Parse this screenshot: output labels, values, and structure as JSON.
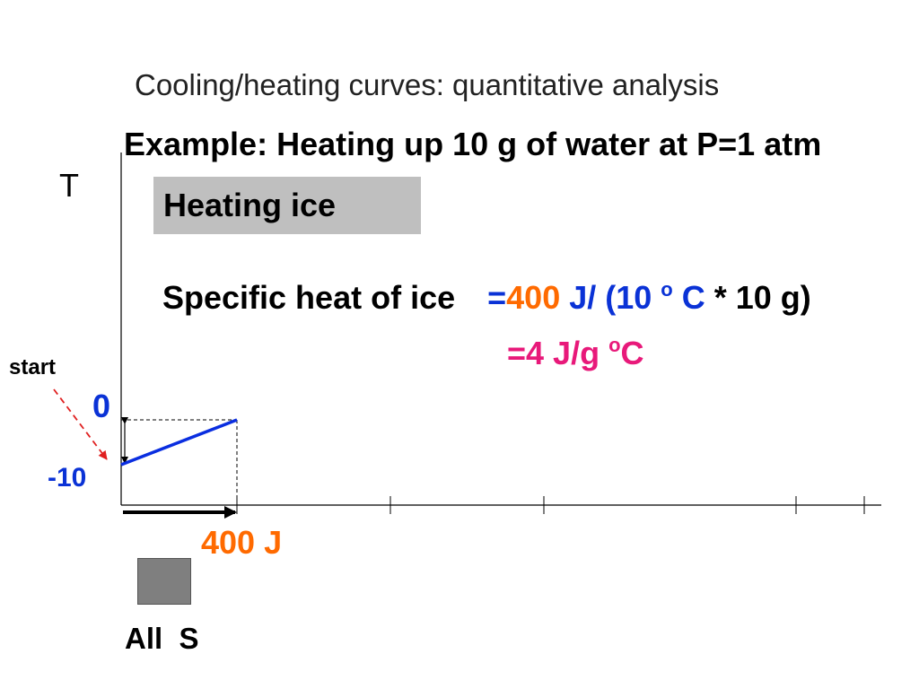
{
  "title": "Cooling/heating curves: quantitative analysis",
  "subtitle": "Example: Heating up 10 g of water at P=1 atm",
  "axis": {
    "y_label": "T"
  },
  "stage_label": "Heating ice",
  "equation": {
    "lhs": "Specific heat of ice",
    "eq_sign": "=",
    "energy": "400",
    "j_part": " J/ (10 ",
    "o_sup": "o",
    "c_part": " C",
    "rest": " * 10 g)",
    "result_main": "=4 J/g ",
    "result_sup": "o",
    "result_unit": "C"
  },
  "start_label": "start",
  "y_ticks": {
    "zero": "0",
    "minus_ten": "-10"
  },
  "energy_label": "400 J",
  "phase_label": "All  S",
  "colors": {
    "orange": "#ff6a00",
    "blue": "#0a32d6",
    "pink": "#e8197a",
    "curve": "#0a2ee0",
    "start_arrow": "#e02020"
  },
  "chart_data": {
    "type": "line",
    "ylabel": "T",
    "y_ticks": [
      0,
      -10
    ],
    "series": [
      {
        "x": [
          0,
          400
        ],
        "y": [
          -10,
          0
        ]
      }
    ]
  }
}
